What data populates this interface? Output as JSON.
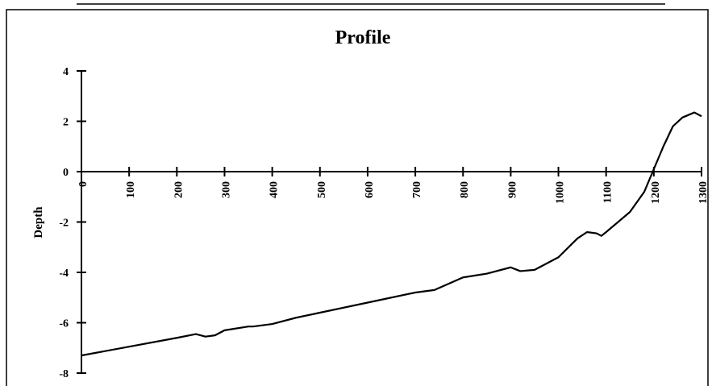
{
  "chart_data": {
    "type": "line",
    "title": "Profile",
    "y_label": "Depth",
    "x": [
      0,
      100,
      200,
      240,
      260,
      280,
      300,
      350,
      360,
      400,
      450,
      500,
      600,
      700,
      740,
      800,
      850,
      900,
      920,
      950,
      1000,
      1040,
      1060,
      1080,
      1090,
      1100,
      1150,
      1180,
      1200,
      1220,
      1240,
      1260,
      1285,
      1300
    ],
    "series": [
      {
        "color": "#000000",
        "values": [
          -7.3,
          -6.95,
          -6.6,
          -6.45,
          -6.55,
          -6.5,
          -6.3,
          -6.15,
          -6.15,
          -6.05,
          -5.8,
          -5.6,
          -5.2,
          -4.8,
          -4.7,
          -4.2,
          -4.05,
          -3.8,
          -3.95,
          -3.9,
          -3.4,
          -2.65,
          -2.4,
          -2.45,
          -2.55,
          -2.4,
          -1.6,
          -0.8,
          0.1,
          1.0,
          1.8,
          2.15,
          2.35,
          2.2
        ]
      }
    ],
    "xlim": [
      0,
      1300
    ],
    "xticks": [
      0,
      100,
      200,
      300,
      400,
      500,
      600,
      700,
      800,
      900,
      1000,
      1100,
      1200,
      1300
    ],
    "ylim": [
      -8,
      4
    ],
    "yticks": [
      -8,
      -6,
      -4,
      -2,
      0,
      2,
      4
    ]
  }
}
